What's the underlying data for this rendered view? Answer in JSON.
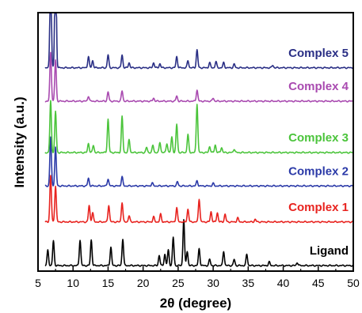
{
  "chart_data": {
    "type": "line",
    "title": "",
    "xlabel": "2θ (degree)",
    "ylabel": "Intensity (a.u.)",
    "xlim": [
      5,
      50
    ],
    "x_ticks": [
      5,
      10,
      15,
      20,
      25,
      30,
      35,
      40,
      45,
      50
    ],
    "y_ticks_shown": false,
    "grid": false,
    "legend": "none (labels placed beside each trace)",
    "series": [
      {
        "name": "Ligand",
        "color": "#000000",
        "offset": 0,
        "peaks": [
          [
            6.4,
            0.3
          ],
          [
            7.2,
            0.48
          ],
          [
            11.0,
            0.5
          ],
          [
            12.6,
            0.5
          ],
          [
            15.4,
            0.36
          ],
          [
            17.1,
            0.52
          ],
          [
            22.3,
            0.2
          ],
          [
            23.1,
            0.22
          ],
          [
            23.6,
            0.3
          ],
          [
            24.3,
            0.55
          ],
          [
            25.8,
            0.9
          ],
          [
            26.3,
            0.28
          ],
          [
            28.0,
            0.33
          ],
          [
            29.5,
            0.12
          ],
          [
            31.5,
            0.28
          ],
          [
            33.0,
            0.12
          ],
          [
            34.8,
            0.22
          ],
          [
            38.0,
            0.07
          ],
          [
            42.0,
            0.06
          ]
        ]
      },
      {
        "name": "Complex 1",
        "color": "#e8231f",
        "offset": 0.85,
        "peaks": [
          [
            6.8,
            0.9
          ],
          [
            7.5,
            0.7
          ],
          [
            12.3,
            0.32
          ],
          [
            12.8,
            0.18
          ],
          [
            15.1,
            0.33
          ],
          [
            17.0,
            0.38
          ],
          [
            18.0,
            0.12
          ],
          [
            21.5,
            0.1
          ],
          [
            22.5,
            0.15
          ],
          [
            24.8,
            0.28
          ],
          [
            26.4,
            0.25
          ],
          [
            28.0,
            0.45
          ],
          [
            29.7,
            0.2
          ],
          [
            30.6,
            0.18
          ],
          [
            31.7,
            0.15
          ],
          [
            33.5,
            0.08
          ],
          [
            36.0,
            0.05
          ]
        ]
      },
      {
        "name": "Complex 2",
        "color": "#2b3aa8",
        "offset": 1.55,
        "peaks": [
          [
            6.8,
            0.95
          ],
          [
            7.5,
            0.75
          ],
          [
            12.2,
            0.15
          ],
          [
            15.0,
            0.14
          ],
          [
            17.0,
            0.18
          ],
          [
            21.3,
            0.06
          ],
          [
            24.9,
            0.08
          ],
          [
            27.7,
            0.1
          ],
          [
            30.0,
            0.05
          ]
        ]
      },
      {
        "name": "Complex 3",
        "color": "#4bc43b",
        "offset": 2.2,
        "peaks": [
          [
            6.8,
            1.0
          ],
          [
            7.5,
            0.8
          ],
          [
            12.2,
            0.18
          ],
          [
            12.9,
            0.14
          ],
          [
            15.0,
            0.65
          ],
          [
            17.0,
            0.7
          ],
          [
            18.0,
            0.25
          ],
          [
            20.5,
            0.1
          ],
          [
            21.4,
            0.14
          ],
          [
            22.4,
            0.2
          ],
          [
            23.4,
            0.18
          ],
          [
            24.1,
            0.3
          ],
          [
            24.8,
            0.55
          ],
          [
            26.4,
            0.35
          ],
          [
            27.7,
            0.95
          ],
          [
            29.5,
            0.12
          ],
          [
            30.3,
            0.15
          ],
          [
            31.2,
            0.1
          ],
          [
            33.0,
            0.07
          ]
        ]
      },
      {
        "name": "Complex 4",
        "color": "#a94ab0",
        "offset": 3.2,
        "peaks": [
          [
            6.8,
            0.95
          ],
          [
            7.5,
            0.8
          ],
          [
            12.2,
            0.1
          ],
          [
            15.0,
            0.18
          ],
          [
            17.0,
            0.2
          ],
          [
            21.5,
            0.06
          ],
          [
            24.8,
            0.1
          ],
          [
            27.7,
            0.22
          ],
          [
            30.0,
            0.06
          ]
        ]
      },
      {
        "name": "Complex 5",
        "color": "#2a2f85",
        "offset": 3.85,
        "peaks": [
          [
            6.8,
            1.9
          ],
          [
            7.5,
            2.5
          ],
          [
            12.2,
            0.22
          ],
          [
            12.8,
            0.14
          ],
          [
            15.0,
            0.25
          ],
          [
            17.0,
            0.25
          ],
          [
            18.0,
            0.1
          ],
          [
            21.5,
            0.1
          ],
          [
            22.4,
            0.08
          ],
          [
            24.8,
            0.22
          ],
          [
            26.4,
            0.14
          ],
          [
            27.7,
            0.35
          ],
          [
            29.5,
            0.1
          ],
          [
            30.4,
            0.12
          ],
          [
            31.5,
            0.1
          ],
          [
            33.0,
            0.07
          ],
          [
            38.5,
            0.05
          ]
        ]
      }
    ]
  }
}
